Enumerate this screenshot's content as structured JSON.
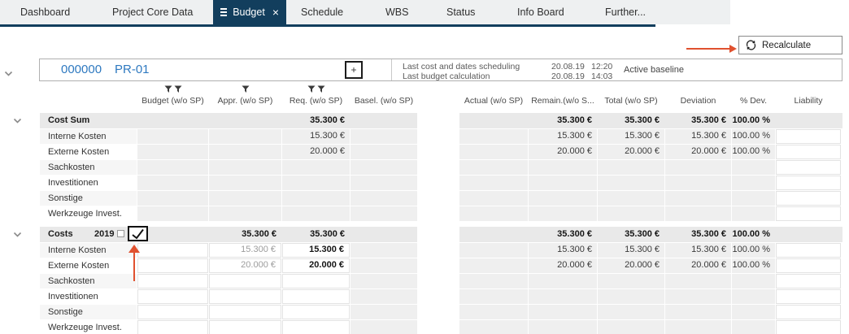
{
  "tabs": [
    {
      "label": "Dashboard"
    },
    {
      "label": "Project Core Data"
    },
    {
      "label": "Budget"
    },
    {
      "label": "Schedule"
    },
    {
      "label": "WBS"
    },
    {
      "label": "Status"
    },
    {
      "label": "Info Board"
    },
    {
      "label": "Further..."
    }
  ],
  "toolbar": {
    "recalculate_label": "Recalculate"
  },
  "project": {
    "id": "000000",
    "name": "PR-01",
    "info": {
      "line1_label": "Last cost and dates scheduling",
      "line1_date": "20.08.19",
      "line1_time": "12:20",
      "line2_label": "Last budget calculation",
      "line2_date": "20.08.19",
      "line2_time": "14:03",
      "baseline": "Active baseline"
    }
  },
  "columns": {
    "budget": "Budget (w/o SP)",
    "appr": "Appr. (w/o SP)",
    "req": "Req. (w/o SP)",
    "basel": "Basel. (w/o SP)",
    "actual": "Actual (w/o SP)",
    "remain": "Remain.(w/o S...",
    "total": "Total (w/o SP)",
    "deviation": "Deviation",
    "pdev": "% Dev.",
    "liability": "Liability"
  },
  "table": {
    "groups": [
      {
        "name": "cost-sum",
        "header": {
          "label": "Cost Sum",
          "cells": {
            "req": "35.300 €",
            "remain": "35.300 €",
            "total": "35.300 €",
            "deviation": "35.300 €",
            "pdev": "100.00 %"
          }
        },
        "rows": [
          {
            "label": "Interne Kosten",
            "cells": {
              "req": "15.300 €",
              "remain": "15.300 €",
              "total": "15.300 €",
              "deviation": "15.300 €",
              "pdev": "100.00 %"
            }
          },
          {
            "label": "Externe Kosten",
            "cells": {
              "req": "20.000 €",
              "remain": "20.000 €",
              "total": "20.000 €",
              "deviation": "20.000 €",
              "pdev": "100.00 %"
            }
          },
          {
            "label": "Sachkosten",
            "cells": {}
          },
          {
            "label": "Investitionen",
            "cells": {}
          },
          {
            "label": "Sonstige",
            "cells": {}
          },
          {
            "label": "Werkzeuge Invest.",
            "cells": {}
          }
        ]
      },
      {
        "name": "costs-2019",
        "header": {
          "label": "Costs",
          "year": "2019",
          "has_checkbox": true,
          "checked": true,
          "cells": {
            "appr": "35.300 €",
            "req": "35.300 €",
            "remain": "35.300 €",
            "total": "35.300 €",
            "deviation": "35.300 €",
            "pdev": "100.00 %"
          }
        },
        "rows": [
          {
            "label": "Interne Kosten",
            "cells": {
              "appr": "15.300 €",
              "req": "15.300 €",
              "remain": "15.300 €",
              "total": "15.300 €",
              "deviation": "15.300 €",
              "pdev": "100.00 %"
            }
          },
          {
            "label": "Externe Kosten",
            "cells": {
              "appr": "20.000 €",
              "req": "20.000 €",
              "remain": "20.000 €",
              "total": "20.000 €",
              "deviation": "20.000 €",
              "pdev": "100.00 %"
            }
          },
          {
            "label": "Sachkosten",
            "cells": {}
          },
          {
            "label": "Investitionen",
            "cells": {}
          },
          {
            "label": "Sonstige",
            "cells": {}
          },
          {
            "label": "Werkzeuge Invest.",
            "cells": {}
          }
        ]
      }
    ]
  },
  "colors": {
    "accent_navy": "#123e5d",
    "annotation_arrow": "#e0512f",
    "link_blue": "#2e79c0"
  }
}
